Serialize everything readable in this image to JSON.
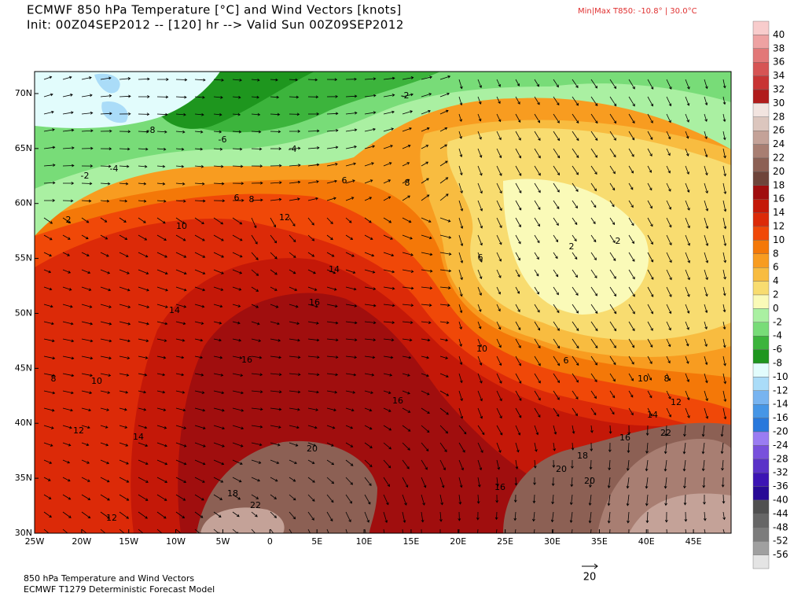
{
  "header": {
    "title_line1": "ECMWF 850 hPa Temperature [°C] and Wind Vectors [knots]",
    "title_line2": "Init: 00Z04SEP2012 -- [120] hr --> Valid Sun 00Z09SEP2012",
    "minmax": "Min|Max T850: -10.8° |  30.0°C"
  },
  "map": {
    "xlim": [
      -25,
      49
    ],
    "ylim": [
      30,
      72
    ],
    "xticks": [
      {
        "value": -25,
        "label": "25W"
      },
      {
        "value": -20,
        "label": "20W"
      },
      {
        "value": -15,
        "label": "15W"
      },
      {
        "value": -10,
        "label": "10W"
      },
      {
        "value": -5,
        "label": "5W"
      },
      0,
      {
        "value": 5,
        "label": "5E"
      },
      {
        "value": 10,
        "label": "10E"
      },
      {
        "value": 15,
        "label": "15E"
      },
      {
        "value": 20,
        "label": "20E"
      },
      {
        "value": 25,
        "label": "25E"
      },
      {
        "value": 30,
        "label": "30E"
      },
      {
        "value": 35,
        "label": "35E"
      },
      {
        "value": 40,
        "label": "40E"
      },
      {
        "value": 45,
        "label": "45E"
      }
    ],
    "yticks": [
      {
        "value": 30,
        "label": "30N"
      },
      {
        "value": 35,
        "label": "35N"
      },
      {
        "value": 40,
        "label": "40N"
      },
      {
        "value": 45,
        "label": "45N"
      },
      {
        "value": 50,
        "label": "50N"
      },
      {
        "value": 55,
        "label": "55N"
      },
      {
        "value": 60,
        "label": "60N"
      },
      {
        "value": 65,
        "label": "65N"
      },
      {
        "value": 70,
        "label": "70N"
      }
    ],
    "contour_labels": [
      -2,
      -8,
      -6,
      -4,
      -4,
      -2,
      6,
      8,
      2,
      10,
      12,
      6,
      8,
      2,
      2,
      6,
      14,
      16,
      14,
      16,
      10,
      6,
      8,
      10,
      10,
      8,
      16,
      14,
      12,
      12,
      14,
      20,
      22,
      16,
      18,
      20,
      20,
      16,
      18,
      22,
      12
    ]
  },
  "colorbar": {
    "levels": [
      40,
      38,
      36,
      34,
      32,
      30,
      28,
      26,
      24,
      22,
      20,
      18,
      16,
      14,
      12,
      10,
      8,
      6,
      4,
      2,
      0,
      -2,
      -4,
      -6,
      -8,
      -10,
      -12,
      -14,
      -16,
      -20,
      -24,
      -28,
      -32,
      -36,
      -40,
      -44,
      -48,
      -52,
      -56
    ],
    "colors": [
      "#f8cccc",
      "#eea2a2",
      "#e27878",
      "#d65454",
      "#c83434",
      "#b01c1c",
      "#f2e4e0",
      "#dcc6be",
      "#c4a298",
      "#a87e72",
      "#8c6054",
      "#6e443a",
      "#a00e0e",
      "#c41808",
      "#dc2a08",
      "#f04808",
      "#f47808",
      "#f89c20",
      "#f8bc40",
      "#f8dc70",
      "#fafab8",
      "#aaf0a2",
      "#78dc78",
      "#3cb43c",
      "#1e961e",
      "#e2fcfc",
      "#aadcf8",
      "#78b4f0",
      "#4696e6",
      "#2878dc",
      "#9a7cf2",
      "#7850dc",
      "#5a32c8",
      "#3c14b4",
      "#280a96",
      "#505050",
      "#666666",
      "#7c7c7c",
      "#a0a0a0",
      "#e4e4e4"
    ]
  },
  "vector_scale": 20,
  "footer": {
    "line1": "850 hPa Temperature and Wind Vectors",
    "line2": "ECMWF T1279 Deterministic Forecast Model"
  }
}
